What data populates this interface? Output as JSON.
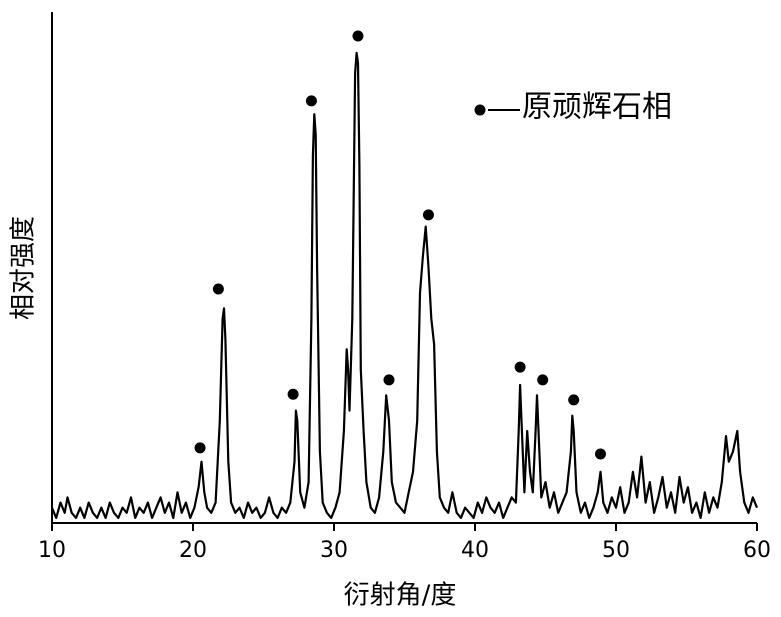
{
  "chart_data": {
    "type": "line",
    "xlabel": "衍射角/度",
    "ylabel": "相对强度",
    "x": [
      10.0,
      10.3,
      10.6,
      10.9,
      11.1,
      11.4,
      11.7,
      12.0,
      12.3,
      12.6,
      12.9,
      13.2,
      13.5,
      13.8,
      14.1,
      14.4,
      14.7,
      15.0,
      15.3,
      15.6,
      15.9,
      16.2,
      16.5,
      16.8,
      17.1,
      17.4,
      17.7,
      18.0,
      18.3,
      18.6,
      18.9,
      19.2,
      19.5,
      19.8,
      20.1,
      20.4,
      20.6,
      20.8,
      21.0,
      21.3,
      21.6,
      21.9,
      22.1,
      22.2,
      22.3,
      22.5,
      22.7,
      23.0,
      23.3,
      23.6,
      23.9,
      24.2,
      24.5,
      24.8,
      25.1,
      25.4,
      25.7,
      26.0,
      26.3,
      26.6,
      26.9,
      27.2,
      27.3,
      27.4,
      27.6,
      27.9,
      28.2,
      28.4,
      28.5,
      28.6,
      28.7,
      28.8,
      29.0,
      29.2,
      29.5,
      29.8,
      30.1,
      30.4,
      30.7,
      30.9,
      31.0,
      31.1,
      31.3,
      31.5,
      31.6,
      31.7,
      31.8,
      31.9,
      32.1,
      32.3,
      32.6,
      32.9,
      33.2,
      33.5,
      33.7,
      33.9,
      34.1,
      34.4,
      34.7,
      35.0,
      35.3,
      35.6,
      35.9,
      36.1,
      36.3,
      36.5,
      36.7,
      36.9,
      37.1,
      37.3,
      37.5,
      37.8,
      38.1,
      38.4,
      38.7,
      39.0,
      39.3,
      39.6,
      39.9,
      40.2,
      40.5,
      40.8,
      41.1,
      41.4,
      41.7,
      42.0,
      42.3,
      42.6,
      42.9,
      43.1,
      43.2,
      43.3,
      43.5,
      43.7,
      43.9,
      44.1,
      44.3,
      44.4,
      44.5,
      44.7,
      45.0,
      45.3,
      45.6,
      45.9,
      46.2,
      46.5,
      46.8,
      46.9,
      47.0,
      47.2,
      47.5,
      47.8,
      48.1,
      48.4,
      48.7,
      48.9,
      49.1,
      49.4,
      49.7,
      50.0,
      50.3,
      50.6,
      50.9,
      51.2,
      51.5,
      51.8,
      52.1,
      52.4,
      52.7,
      53.0,
      53.3,
      53.6,
      53.9,
      54.2,
      54.5,
      54.8,
      55.1,
      55.4,
      55.7,
      56.0,
      56.3,
      56.6,
      56.9,
      57.2,
      57.5,
      57.8,
      58.0,
      58.3,
      58.6,
      58.8,
      59.1,
      59.4,
      59.7,
      60.0
    ],
    "series": [
      {
        "color": "#000000",
        "values": [
          3,
          1,
          4,
          2,
          5,
          2,
          1,
          3,
          1,
          4,
          2,
          1,
          3,
          1,
          4,
          2,
          1,
          3,
          2,
          5,
          1,
          3,
          2,
          4,
          1,
          3,
          5,
          2,
          4,
          1,
          6,
          2,
          4,
          1,
          3,
          7,
          12,
          6,
          3,
          2,
          4,
          20,
          40,
          42,
          36,
          12,
          4,
          2,
          3,
          1,
          4,
          2,
          3,
          1,
          2,
          5,
          2,
          1,
          3,
          2,
          4,
          12,
          22,
          20,
          6,
          3,
          8,
          40,
          72,
          80,
          76,
          50,
          14,
          4,
          2,
          1,
          3,
          6,
          18,
          34,
          30,
          22,
          40,
          88,
          92,
          90,
          70,
          30,
          18,
          8,
          3,
          2,
          5,
          14,
          25,
          20,
          8,
          4,
          3,
          2,
          6,
          10,
          20,
          45,
          52,
          58,
          50,
          40,
          35,
          14,
          5,
          3,
          2,
          6,
          2,
          1,
          3,
          2,
          1,
          4,
          2,
          5,
          3,
          2,
          4,
          1,
          3,
          5,
          4,
          18,
          27,
          20,
          6,
          18,
          10,
          6,
          18,
          25,
          18,
          5,
          8,
          3,
          6,
          2,
          4,
          6,
          14,
          21,
          18,
          6,
          2,
          4,
          1,
          3,
          6,
          10,
          4,
          2,
          5,
          3,
          7,
          2,
          4,
          10,
          5,
          13,
          4,
          8,
          2,
          5,
          9,
          3,
          6,
          2,
          9,
          4,
          7,
          2,
          4,
          1,
          6,
          2,
          5,
          3,
          8,
          17,
          12,
          14,
          18,
          10,
          4,
          2,
          5,
          3
        ]
      }
    ],
    "markers": {
      "name": "原顽辉石相",
      "color": "#000000",
      "x": [
        20.5,
        21.8,
        27.1,
        28.4,
        31.7,
        33.9,
        36.7,
        43.2,
        44.8,
        47.0,
        48.9
      ],
      "y": [
        14.7,
        45.8,
        25.2,
        82.6,
        95.3,
        28,
        60.3,
        30.5,
        28,
        24.1,
        13.5
      ]
    },
    "xlim": [
      10,
      60
    ],
    "xticks": [
      10,
      20,
      30,
      40,
      50,
      60
    ],
    "ylim": [
      0,
      100
    ]
  }
}
